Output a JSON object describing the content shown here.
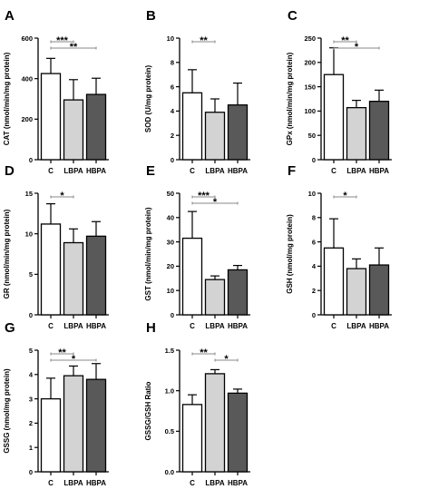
{
  "chart_data": [
    {
      "letter": "A",
      "type": "bar",
      "ylabel": "CAT (nmol/min/mg protein)",
      "ylim": [
        0,
        600
      ],
      "yticks": [
        0,
        200,
        400,
        600
      ],
      "categories": [
        "C",
        "LBPA",
        "HBPA"
      ],
      "values": [
        425,
        295,
        322
      ],
      "errors": [
        75,
        100,
        80
      ],
      "significance": [
        {
          "from": 0,
          "to": 1,
          "label": "***"
        },
        {
          "from": 0,
          "to": 2,
          "label": "**"
        }
      ]
    },
    {
      "letter": "B",
      "type": "bar",
      "ylabel": "SOD (U/mg protein)",
      "ylim": [
        0,
        10
      ],
      "yticks": [
        0,
        2,
        4,
        6,
        8,
        10
      ],
      "categories": [
        "C",
        "LBPA",
        "HBPA"
      ],
      "values": [
        5.5,
        3.9,
        4.5
      ],
      "errors": [
        1.9,
        1.1,
        1.8
      ],
      "significance": [
        {
          "from": 0,
          "to": 1,
          "label": "**"
        }
      ]
    },
    {
      "letter": "C",
      "type": "bar",
      "ylabel": "GPx (nmol/min/mg protein)",
      "ylim": [
        0,
        250
      ],
      "yticks": [
        0,
        50,
        100,
        150,
        200,
        250
      ],
      "categories": [
        "C",
        "LBPA",
        "HBPA"
      ],
      "values": [
        175,
        107,
        120
      ],
      "errors": [
        55,
        15,
        23
      ],
      "significance": [
        {
          "from": 0,
          "to": 1,
          "label": "**"
        },
        {
          "from": 0,
          "to": 2,
          "label": "*"
        }
      ]
    },
    {
      "letter": "D",
      "type": "bar",
      "ylabel": "GR (nmol/min/mg protein)",
      "ylim": [
        0,
        15
      ],
      "yticks": [
        0,
        5,
        10,
        15
      ],
      "categories": [
        "C",
        "LBPA",
        "HBPA"
      ],
      "values": [
        11.2,
        8.9,
        9.7
      ],
      "errors": [
        2.5,
        1.7,
        1.8
      ],
      "significance": [
        {
          "from": 0,
          "to": 1,
          "label": "*"
        }
      ]
    },
    {
      "letter": "E",
      "type": "bar",
      "ylabel": "GST (nmol/min/mg protein)",
      "ylim": [
        0,
        50
      ],
      "yticks": [
        0,
        10,
        20,
        30,
        40,
        50
      ],
      "categories": [
        "C",
        "LBPA",
        "HBPA"
      ],
      "values": [
        31.5,
        14.5,
        18.5
      ],
      "errors": [
        11,
        1.5,
        1.8
      ],
      "significance": [
        {
          "from": 0,
          "to": 1,
          "label": "***"
        },
        {
          "from": 0,
          "to": 2,
          "label": "*"
        }
      ]
    },
    {
      "letter": "F",
      "type": "bar",
      "ylabel": "GSH (nmol/mg protein)",
      "ylim": [
        0,
        10
      ],
      "yticks": [
        0,
        2,
        4,
        6,
        8,
        10
      ],
      "categories": [
        "C",
        "LBPA",
        "HBPA"
      ],
      "values": [
        5.5,
        3.8,
        4.1
      ],
      "errors": [
        2.4,
        0.8,
        1.4
      ],
      "significance": [
        {
          "from": 0,
          "to": 1,
          "label": "*"
        }
      ]
    },
    {
      "letter": "G",
      "type": "bar",
      "ylabel": "GSSG (nmol/mg protein)",
      "ylim": [
        0,
        5
      ],
      "yticks": [
        0,
        1,
        2,
        3,
        4,
        5
      ],
      "categories": [
        "C",
        "LBPA",
        "HBPA"
      ],
      "values": [
        3.0,
        3.95,
        3.8
      ],
      "errors": [
        0.85,
        0.4,
        0.65
      ],
      "significance": [
        {
          "from": 0,
          "to": 1,
          "label": "**"
        },
        {
          "from": 0,
          "to": 2,
          "label": "*"
        }
      ]
    },
    {
      "letter": "H",
      "type": "bar",
      "ylabel": "GSSG/GSH Ratio",
      "ylim": [
        0,
        1.5
      ],
      "yticks": [
        0.0,
        0.5,
        1.0,
        1.5
      ],
      "categories": [
        "C",
        "LBPA",
        "HBPA"
      ],
      "values": [
        0.83,
        1.21,
        0.97
      ],
      "errors": [
        0.12,
        0.05,
        0.05
      ],
      "significance": [
        {
          "from": 0,
          "to": 1,
          "label": "**"
        },
        {
          "from": 1,
          "to": 2,
          "label": "*"
        }
      ]
    }
  ],
  "colors": {
    "bars": [
      "#ffffff",
      "#d3d3d3",
      "#595959"
    ],
    "axis": "#000000",
    "bracket": "#888888"
  }
}
